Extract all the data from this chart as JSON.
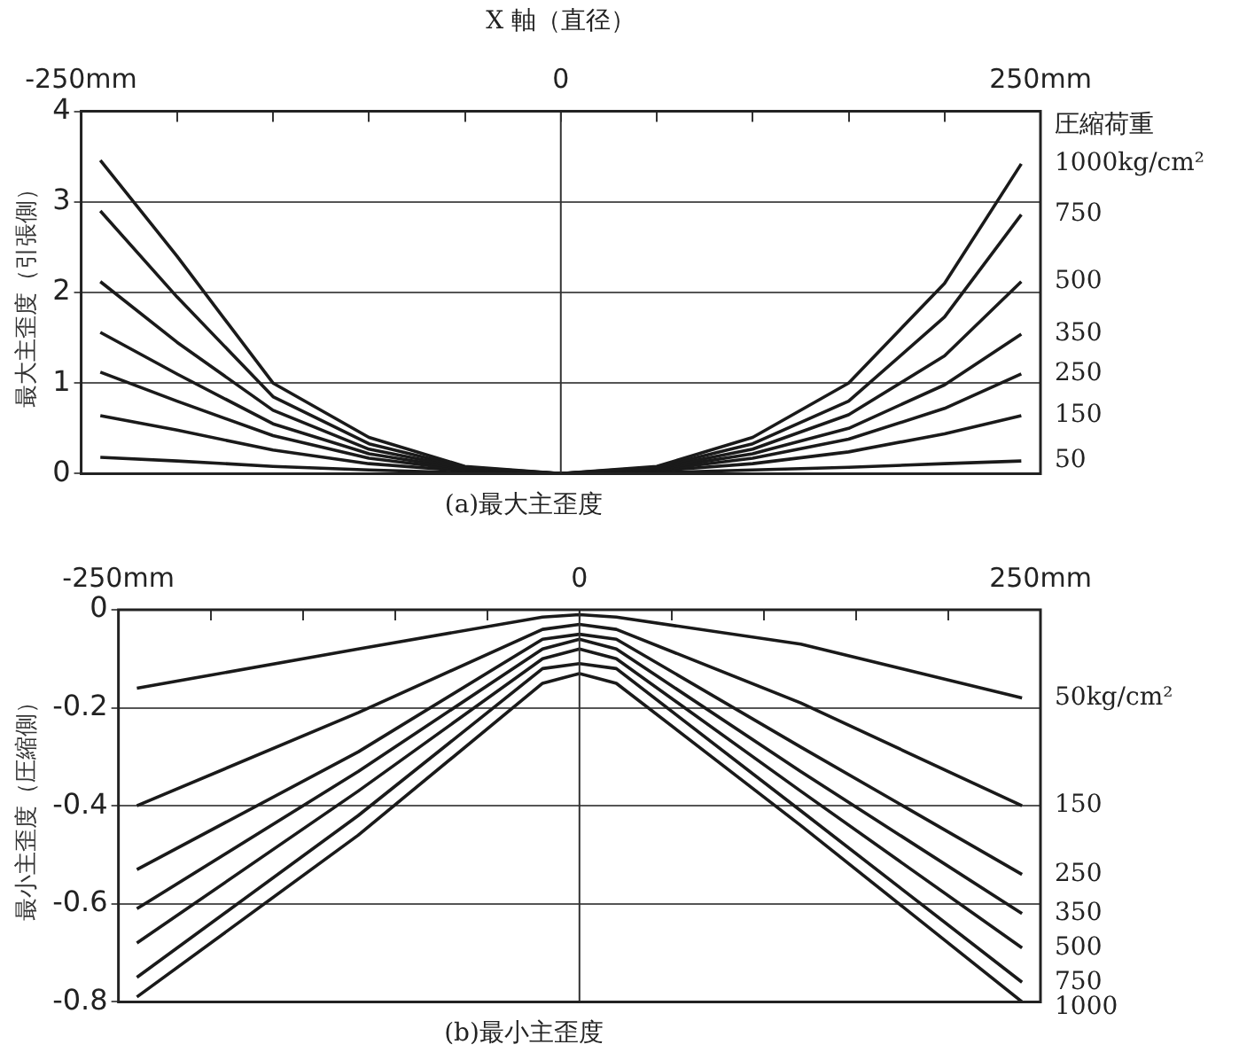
{
  "chart_data": [
    {
      "type": "line",
      "title": "(a)最大主歪度",
      "xlabel": "X 軸（直径）",
      "ylabel": "最大主歪度（引張側）",
      "legend_title": "圧縮荷重",
      "legend": false,
      "marker": "none",
      "grid": "y",
      "xlim": [
        -250,
        250
      ],
      "xticks": [
        {
          "value": -250,
          "label": "-250mm"
        },
        {
          "value": -200,
          "label": null
        },
        {
          "value": -150,
          "label": null
        },
        {
          "value": -100,
          "label": null
        },
        {
          "value": -50,
          "label": null
        },
        0,
        {
          "value": 50,
          "label": null
        },
        {
          "value": 100,
          "label": null
        },
        {
          "value": 150,
          "label": null
        },
        {
          "value": 200,
          "label": null
        },
        {
          "value": 250,
          "label": "250mm"
        }
      ],
      "ylim": [
        0,
        4
      ],
      "yticks": [
        0,
        1,
        2,
        3,
        4
      ],
      "ref_lines": [
        {
          "axis": "x",
          "value": 0,
          "label": null
        }
      ],
      "x": [
        -240,
        -200,
        -150,
        -100,
        -50,
        0,
        50,
        100,
        150,
        200,
        240
      ],
      "series": [
        {
          "name": "1000kg/cm²",
          "color": "#1a1a1a",
          "values": [
            3.46,
            2.4,
            1.0,
            0.4,
            0.08,
            0,
            0.08,
            0.4,
            1.0,
            2.1,
            3.42
          ]
        },
        {
          "name": "750",
          "color": "#1a1a1a",
          "values": [
            2.9,
            1.95,
            0.85,
            0.33,
            0.07,
            0,
            0.07,
            0.33,
            0.8,
            1.73,
            2.86
          ]
        },
        {
          "name": "500",
          "color": "#1a1a1a",
          "values": [
            2.12,
            1.45,
            0.7,
            0.27,
            0.06,
            0,
            0.06,
            0.27,
            0.65,
            1.3,
            2.12
          ]
        },
        {
          "name": "350",
          "color": "#1a1a1a",
          "values": [
            1.56,
            1.1,
            0.55,
            0.22,
            0.05,
            0,
            0.05,
            0.22,
            0.5,
            0.98,
            1.54
          ]
        },
        {
          "name": "250",
          "color": "#1a1a1a",
          "values": [
            1.12,
            0.8,
            0.42,
            0.17,
            0.04,
            0,
            0.04,
            0.17,
            0.38,
            0.72,
            1.1
          ]
        },
        {
          "name": "150",
          "color": "#1a1a1a",
          "values": [
            0.64,
            0.48,
            0.26,
            0.11,
            0.03,
            0,
            0.03,
            0.11,
            0.24,
            0.44,
            0.64
          ]
        },
        {
          "name": "50",
          "color": "#1a1a1a",
          "values": [
            0.18,
            0.14,
            0.08,
            0.04,
            0.01,
            0,
            0.01,
            0.04,
            0.07,
            0.11,
            0.14
          ]
        }
      ]
    },
    {
      "type": "line",
      "title": "(b)最小主歪度",
      "ylabel": "最小主歪度（圧縮側）",
      "legend": false,
      "marker": "none",
      "grid": "y",
      "xlim": [
        -250,
        250
      ],
      "xticks": [
        {
          "value": -250,
          "label": "-250mm"
        },
        {
          "value": -200,
          "label": null
        },
        {
          "value": -150,
          "label": null
        },
        {
          "value": -100,
          "label": null
        },
        {
          "value": -50,
          "label": null
        },
        0,
        {
          "value": 50,
          "label": null
        },
        {
          "value": 100,
          "label": null
        },
        {
          "value": 150,
          "label": null
        },
        {
          "value": 200,
          "label": null
        },
        {
          "value": 250,
          "label": "250mm"
        }
      ],
      "ylim": [
        -0.8,
        0
      ],
      "yticks": [
        -0.8,
        -0.6,
        -0.4,
        -0.2,
        0
      ],
      "ref_lines": [
        {
          "axis": "x",
          "value": 0,
          "label": null
        }
      ],
      "x": [
        -240,
        -120,
        -20,
        0,
        20,
        120,
        240
      ],
      "series": [
        {
          "name": "50kg/cm²",
          "color": "#1a1a1a",
          "values": [
            -0.16,
            -0.08,
            -0.015,
            -0.01,
            -0.015,
            -0.07,
            -0.18
          ]
        },
        {
          "name": "150",
          "color": "#1a1a1a",
          "values": [
            -0.4,
            -0.21,
            -0.04,
            -0.03,
            -0.04,
            -0.19,
            -0.4
          ]
        },
        {
          "name": "250",
          "color": "#1a1a1a",
          "values": [
            -0.53,
            -0.29,
            -0.06,
            -0.05,
            -0.06,
            -0.28,
            -0.54
          ]
        },
        {
          "name": "350",
          "color": "#1a1a1a",
          "values": [
            -0.61,
            -0.33,
            -0.08,
            -0.06,
            -0.08,
            -0.33,
            -0.62
          ]
        },
        {
          "name": "500",
          "color": "#1a1a1a",
          "values": [
            -0.68,
            -0.37,
            -0.1,
            -0.08,
            -0.1,
            -0.37,
            -0.69
          ]
        },
        {
          "name": "750",
          "color": "#1a1a1a",
          "values": [
            -0.75,
            -0.42,
            -0.12,
            -0.11,
            -0.12,
            -0.41,
            -0.76
          ]
        },
        {
          "name": "1000",
          "color": "#1a1a1a",
          "values": [
            -0.79,
            -0.46,
            -0.15,
            -0.13,
            -0.15,
            -0.44,
            -0.8
          ]
        }
      ]
    }
  ]
}
